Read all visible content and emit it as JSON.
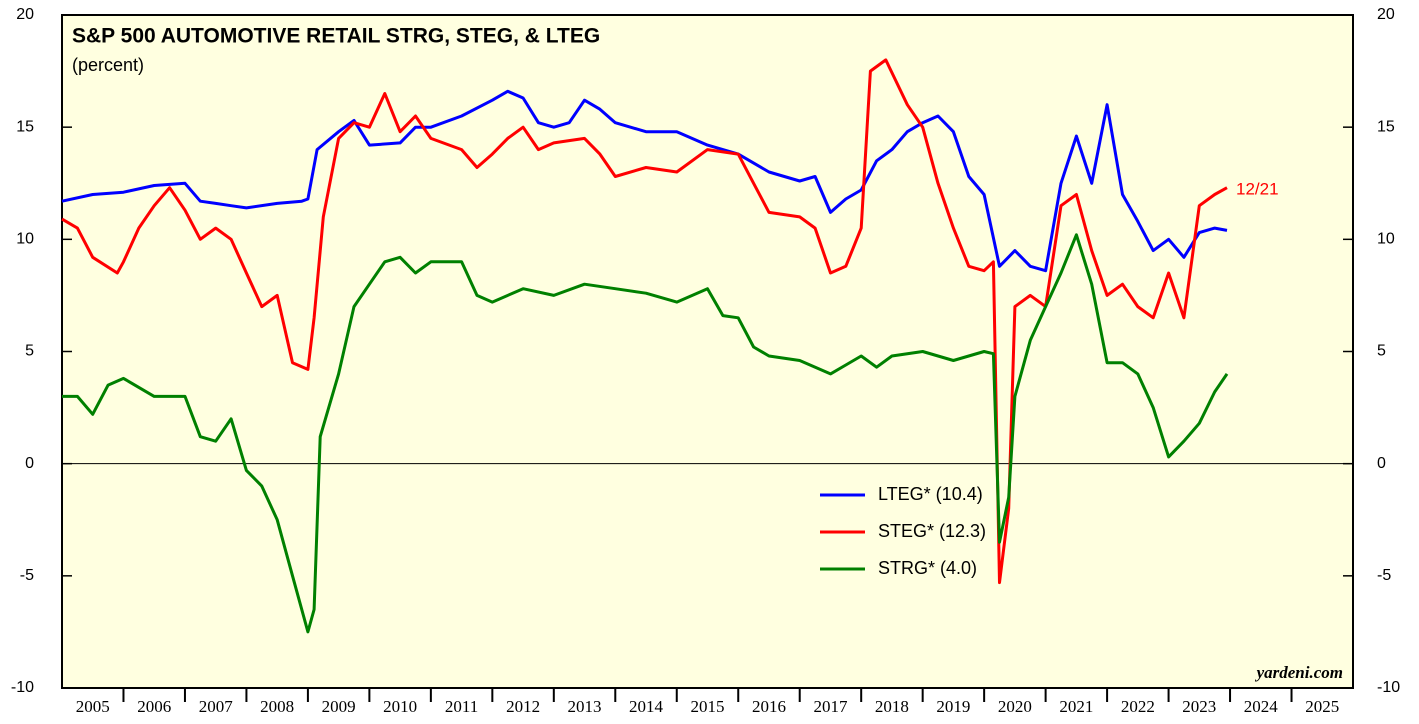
{
  "chart_data": {
    "type": "line",
    "title": "S&P 500 AUTOMOTIVE RETAIL STRG, STEG, & LTEG",
    "subtitle": "(percent)",
    "annotation": "12/21",
    "source": "yardeni.com",
    "xlim": [
      2005,
      2026
    ],
    "xticks": [
      2005,
      2006,
      2007,
      2008,
      2009,
      2010,
      2011,
      2012,
      2013,
      2014,
      2015,
      2016,
      2017,
      2018,
      2019,
      2020,
      2021,
      2022,
      2023,
      2024,
      2025
    ],
    "ylim": [
      -10,
      20
    ],
    "yticks": [
      -10,
      -5,
      0,
      5,
      10,
      15,
      20
    ],
    "series": [
      {
        "name": "LTEG* (10.4)",
        "color": "#0000ff",
        "x": [
          2005.0,
          2005.5,
          2006.0,
          2006.5,
          2007.0,
          2007.25,
          2007.5,
          2007.75,
          2008.0,
          2008.5,
          2008.9,
          2009.0,
          2009.15,
          2009.5,
          2009.75,
          2010.0,
          2010.5,
          2010.75,
          2011.0,
          2011.5,
          2012.0,
          2012.25,
          2012.5,
          2012.75,
          2013.0,
          2013.25,
          2013.5,
          2013.75,
          2014.0,
          2014.5,
          2015.0,
          2015.5,
          2016.0,
          2016.5,
          2017.0,
          2017.25,
          2017.5,
          2017.75,
          2018.0,
          2018.25,
          2018.5,
          2018.75,
          2019.0,
          2019.25,
          2019.5,
          2019.75,
          2020.0,
          2020.25,
          2020.5,
          2020.75,
          2021.0,
          2021.25,
          2021.5,
          2021.75,
          2022.0,
          2022.25,
          2022.5,
          2022.75,
          2023.0,
          2023.25,
          2023.5,
          2023.75,
          2023.95
        ],
        "values": [
          11.7,
          12.0,
          12.1,
          12.4,
          12.5,
          11.7,
          11.6,
          11.5,
          11.4,
          11.6,
          11.7,
          11.8,
          14.0,
          14.8,
          15.3,
          14.2,
          14.3,
          15.0,
          15.0,
          15.5,
          16.2,
          16.6,
          16.3,
          15.2,
          15.0,
          15.2,
          16.2,
          15.8,
          15.2,
          14.8,
          14.8,
          14.2,
          13.8,
          13.0,
          12.6,
          12.8,
          11.2,
          11.8,
          12.2,
          13.5,
          14.0,
          14.8,
          15.2,
          15.5,
          14.8,
          12.8,
          12.0,
          8.8,
          9.5,
          8.8,
          8.6,
          12.5,
          14.6,
          12.5,
          16.0,
          12.0,
          10.8,
          9.5,
          10.0,
          9.2,
          10.3,
          10.5,
          10.4
        ]
      },
      {
        "name": "STEG* (12.3)",
        "color": "#ff0000",
        "x": [
          2005.0,
          2005.25,
          2005.5,
          2005.9,
          2006.0,
          2006.25,
          2006.5,
          2006.75,
          2007.0,
          2007.25,
          2007.5,
          2007.75,
          2008.0,
          2008.25,
          2008.5,
          2008.75,
          2009.0,
          2009.1,
          2009.25,
          2009.5,
          2009.75,
          2010.0,
          2010.25,
          2010.5,
          2010.75,
          2011.0,
          2011.5,
          2011.75,
          2012.0,
          2012.25,
          2012.5,
          2012.75,
          2013.0,
          2013.5,
          2013.75,
          2014.0,
          2014.5,
          2015.0,
          2015.5,
          2016.0,
          2016.25,
          2016.5,
          2017.0,
          2017.25,
          2017.5,
          2017.75,
          2018.0,
          2018.15,
          2018.4,
          2018.75,
          2019.0,
          2019.25,
          2019.5,
          2019.75,
          2020.0,
          2020.15,
          2020.25,
          2020.4,
          2020.5,
          2020.75,
          2021.0,
          2021.25,
          2021.5,
          2021.75,
          2022.0,
          2022.25,
          2022.5,
          2022.75,
          2023.0,
          2023.25,
          2023.5,
          2023.75,
          2023.95
        ],
        "values": [
          10.9,
          10.5,
          9.2,
          8.5,
          9.0,
          10.5,
          11.5,
          12.3,
          11.3,
          10.0,
          10.5,
          10.0,
          8.5,
          7.0,
          7.5,
          4.5,
          4.2,
          6.5,
          11.0,
          14.5,
          15.2,
          15.0,
          16.5,
          14.8,
          15.5,
          14.5,
          14.0,
          13.2,
          13.8,
          14.5,
          15.0,
          14.0,
          14.3,
          14.5,
          13.8,
          12.8,
          13.2,
          13.0,
          14.0,
          13.8,
          12.5,
          11.2,
          11.0,
          10.5,
          8.5,
          8.8,
          10.5,
          17.5,
          18.0,
          16.0,
          15.0,
          12.5,
          10.5,
          8.8,
          8.6,
          9.0,
          -5.3,
          -2.0,
          7.0,
          7.5,
          7.0,
          11.5,
          12.0,
          9.5,
          7.5,
          8.0,
          7.0,
          6.5,
          8.5,
          6.5,
          11.5,
          12.0,
          12.3
        ]
      },
      {
        "name": "STRG* (4.0)",
        "color": "#008000",
        "x": [
          2005.0,
          2005.25,
          2005.5,
          2005.75,
          2006.0,
          2006.5,
          2007.0,
          2007.25,
          2007.5,
          2007.75,
          2008.0,
          2008.25,
          2008.5,
          2008.75,
          2009.0,
          2009.1,
          2009.2,
          2009.5,
          2009.75,
          2010.0,
          2010.25,
          2010.5,
          2010.75,
          2011.0,
          2011.5,
          2011.75,
          2012.0,
          2012.5,
          2013.0,
          2013.5,
          2014.0,
          2014.5,
          2015.0,
          2015.5,
          2015.75,
          2016.0,
          2016.25,
          2016.5,
          2017.0,
          2017.5,
          2017.75,
          2018.0,
          2018.25,
          2018.5,
          2019.0,
          2019.5,
          2020.0,
          2020.15,
          2020.25,
          2020.4,
          2020.5,
          2020.75,
          2021.0,
          2021.25,
          2021.5,
          2021.75,
          2022.0,
          2022.25,
          2022.5,
          2022.75,
          2023.0,
          2023.25,
          2023.5,
          2023.75,
          2023.95
        ],
        "values": [
          3.0,
          3.0,
          2.2,
          3.5,
          3.8,
          3.0,
          3.0,
          1.2,
          1.0,
          2.0,
          -0.3,
          -1.0,
          -2.5,
          -5.0,
          -7.5,
          -6.5,
          1.2,
          4.0,
          7.0,
          8.0,
          9.0,
          9.2,
          8.5,
          9.0,
          9.0,
          7.5,
          7.2,
          7.8,
          7.5,
          8.0,
          7.8,
          7.6,
          7.2,
          7.8,
          6.6,
          6.5,
          5.2,
          4.8,
          4.6,
          4.0,
          4.4,
          4.8,
          4.3,
          4.8,
          5.0,
          4.6,
          5.0,
          4.9,
          -3.5,
          -1.5,
          3.0,
          5.5,
          7.0,
          8.5,
          10.2,
          8.0,
          4.5,
          4.5,
          4.0,
          2.5,
          0.3,
          1.0,
          1.8,
          3.2,
          4.0
        ]
      }
    ]
  }
}
